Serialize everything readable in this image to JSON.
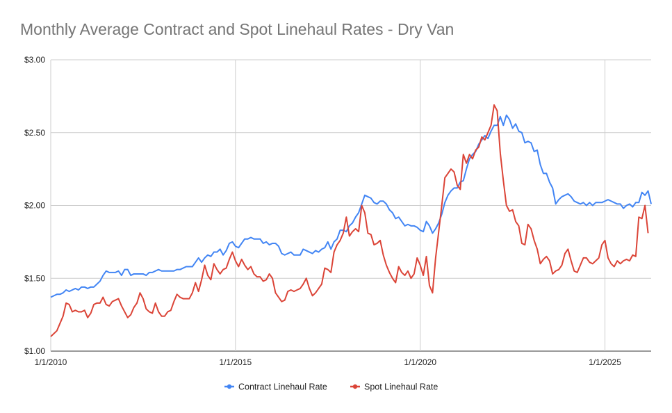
{
  "chart_data": {
    "type": "line",
    "title": "Monthly Average Contract and Spot Linehaul Rates - Dry Van",
    "xlabel": "",
    "ylabel": "",
    "x_start": "2010-01",
    "x_step": "1 month",
    "x_tick_labels": [
      "1/1/2010",
      "1/1/2015",
      "1/1/2020",
      "1/1/2025"
    ],
    "x_tick_months": [
      0,
      60,
      120,
      180
    ],
    "ylim": [
      1.0,
      3.0
    ],
    "y_ticks": [
      1.0,
      1.5,
      2.0,
      2.5,
      3.0
    ],
    "y_tick_labels": [
      "$1.00",
      "$1.50",
      "$2.00",
      "$2.50",
      "$3.00"
    ],
    "grid": true,
    "legend_position": "bottom",
    "series": [
      {
        "name": "Contract Linehaul Rate",
        "color": "#4285F4",
        "values": [
          1.37,
          1.38,
          1.39,
          1.39,
          1.4,
          1.42,
          1.41,
          1.42,
          1.43,
          1.42,
          1.44,
          1.44,
          1.43,
          1.44,
          1.44,
          1.46,
          1.48,
          1.52,
          1.55,
          1.54,
          1.54,
          1.54,
          1.55,
          1.52,
          1.56,
          1.56,
          1.52,
          1.53,
          1.53,
          1.53,
          1.53,
          1.52,
          1.54,
          1.54,
          1.55,
          1.56,
          1.55,
          1.55,
          1.55,
          1.55,
          1.55,
          1.56,
          1.56,
          1.57,
          1.58,
          1.58,
          1.58,
          1.61,
          1.64,
          1.61,
          1.64,
          1.66,
          1.65,
          1.68,
          1.68,
          1.7,
          1.66,
          1.69,
          1.74,
          1.75,
          1.72,
          1.71,
          1.74,
          1.77,
          1.77,
          1.78,
          1.77,
          1.77,
          1.77,
          1.74,
          1.75,
          1.73,
          1.74,
          1.74,
          1.72,
          1.67,
          1.66,
          1.67,
          1.68,
          1.66,
          1.66,
          1.66,
          1.7,
          1.69,
          1.68,
          1.67,
          1.69,
          1.68,
          1.7,
          1.71,
          1.75,
          1.7,
          1.75,
          1.77,
          1.83,
          1.83,
          1.82,
          1.86,
          1.88,
          1.92,
          1.95,
          2.01,
          2.07,
          2.06,
          2.05,
          2.02,
          2.01,
          2.03,
          2.03,
          2.01,
          1.97,
          1.95,
          1.91,
          1.92,
          1.89,
          1.86,
          1.87,
          1.86,
          1.86,
          1.85,
          1.83,
          1.82,
          1.89,
          1.86,
          1.81,
          1.84,
          1.88,
          1.94,
          2.02,
          2.07,
          2.1,
          2.12,
          2.12,
          2.16,
          2.17,
          2.25,
          2.32,
          2.35,
          2.37,
          2.42,
          2.45,
          2.48,
          2.46,
          2.51,
          2.55,
          2.55,
          2.61,
          2.55,
          2.62,
          2.59,
          2.53,
          2.56,
          2.51,
          2.5,
          2.43,
          2.44,
          2.43,
          2.37,
          2.38,
          2.28,
          2.22,
          2.22,
          2.16,
          2.12,
          2.01,
          2.04,
          2.06,
          2.07,
          2.08,
          2.06,
          2.03,
          2.02,
          2.01,
          2.02,
          2.0,
          2.02,
          2.0,
          2.02,
          2.02,
          2.02,
          2.03,
          2.04,
          2.03,
          2.02,
          2.01,
          2.01,
          1.98,
          2.0,
          2.01,
          1.99,
          2.02,
          2.02,
          2.09,
          2.07,
          2.1,
          2.01
        ]
      },
      {
        "name": "Spot Linehaul Rate",
        "color": "#DB4437",
        "values": [
          1.1,
          1.12,
          1.14,
          1.19,
          1.24,
          1.33,
          1.32,
          1.27,
          1.28,
          1.27,
          1.27,
          1.28,
          1.23,
          1.26,
          1.32,
          1.33,
          1.33,
          1.37,
          1.32,
          1.31,
          1.34,
          1.35,
          1.36,
          1.31,
          1.27,
          1.23,
          1.25,
          1.3,
          1.33,
          1.4,
          1.36,
          1.29,
          1.27,
          1.26,
          1.33,
          1.27,
          1.24,
          1.24,
          1.27,
          1.28,
          1.34,
          1.39,
          1.37,
          1.36,
          1.36,
          1.36,
          1.4,
          1.47,
          1.41,
          1.49,
          1.59,
          1.52,
          1.49,
          1.6,
          1.56,
          1.53,
          1.56,
          1.57,
          1.63,
          1.68,
          1.62,
          1.58,
          1.63,
          1.59,
          1.56,
          1.58,
          1.53,
          1.51,
          1.51,
          1.48,
          1.49,
          1.53,
          1.5,
          1.4,
          1.37,
          1.34,
          1.35,
          1.41,
          1.42,
          1.41,
          1.42,
          1.43,
          1.46,
          1.5,
          1.43,
          1.38,
          1.4,
          1.43,
          1.46,
          1.57,
          1.56,
          1.54,
          1.68,
          1.73,
          1.76,
          1.81,
          1.92,
          1.79,
          1.82,
          1.84,
          1.82,
          2.0,
          1.95,
          1.81,
          1.8,
          1.73,
          1.74,
          1.76,
          1.66,
          1.59,
          1.54,
          1.5,
          1.47,
          1.58,
          1.54,
          1.52,
          1.55,
          1.5,
          1.53,
          1.64,
          1.59,
          1.52,
          1.65,
          1.45,
          1.4,
          1.64,
          1.82,
          2.0,
          2.19,
          2.22,
          2.25,
          2.23,
          2.14,
          2.11,
          2.35,
          2.29,
          2.35,
          2.32,
          2.38,
          2.4,
          2.47,
          2.45,
          2.5,
          2.55,
          2.69,
          2.65,
          2.36,
          2.17,
          2.0,
          1.96,
          1.97,
          1.89,
          1.86,
          1.74,
          1.73,
          1.87,
          1.84,
          1.76,
          1.7,
          1.6,
          1.63,
          1.65,
          1.62,
          1.53,
          1.55,
          1.56,
          1.59,
          1.67,
          1.7,
          1.62,
          1.55,
          1.54,
          1.59,
          1.64,
          1.64,
          1.61,
          1.6,
          1.62,
          1.64,
          1.73,
          1.76,
          1.64,
          1.6,
          1.58,
          1.62,
          1.6,
          1.62,
          1.63,
          1.62,
          1.66,
          1.65,
          1.92,
          1.91,
          2.0,
          1.81
        ]
      }
    ]
  }
}
